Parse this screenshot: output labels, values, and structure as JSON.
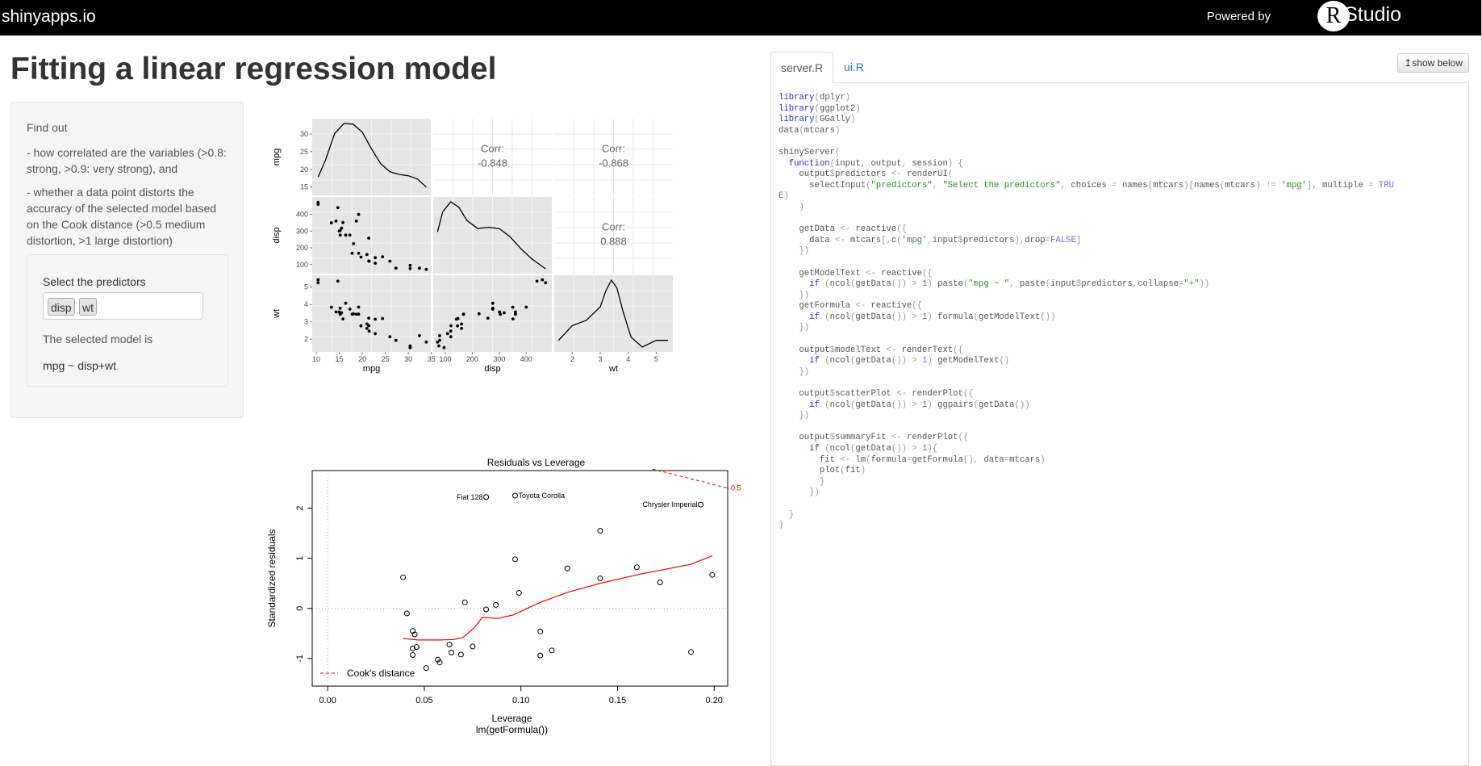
{
  "topbar": {
    "brand": "shinyapps.io",
    "powered_by": "Powered by",
    "logo_letter": "R",
    "logo_text": "Studio"
  },
  "page": {
    "title": "Fitting a linear regression model"
  },
  "sidebar": {
    "find_out": "Find out",
    "bullet1": "- how correlated are the variables (>0.8: strong, >0.9: very strong), and",
    "bullet2": "- whether a data point distorts the accuracy of the selected model based on the Cook distance (>0.5 medium distortion, >1 large distortion)",
    "select_label": "Select the predictors",
    "selected_tags": [
      "disp",
      "wt"
    ],
    "selected_model_label": "The selected model is",
    "model_formula": "mpg ~ disp+wt"
  },
  "code_panel": {
    "tabs": [
      {
        "label": "server.R",
        "active": true
      },
      {
        "label": "ui.R",
        "active": false
      }
    ],
    "show_below_label": "↥show below",
    "code": "library(dplyr)\nlibrary(ggplot2)\nlibrary(GGally)\ndata(mtcars)\n\nshinyServer(\n  function(input, output, session) {\n    output$predictors <- renderUI(\n      selectInput(\"predictors\", \"Select the predictors\", choices = names(mtcars)[names(mtcars) != 'mpg'], multiple = TRU\nE)\n    )\n\n    getData <- reactive({\n      data <- mtcars[,c('mpg',input$predictors),drop=FALSE]\n    })\n\n    getModelText <- reactive({\n      if (ncol(getData()) > 1) paste(\"mpg ~ \", paste(input$predictors,collapse=\"+\"))\n    })\n    getFormula <- reactive({\n      if (ncol(getData()) > 1) formula(getModelText())\n    })\n\n    output$modelText <- renderText({\n      if (ncol(getData()) > 1) getModelText()\n    })\n\n    output$scatterPlot <- renderPlot({\n      if (ncol(getData()) > 1) ggpairs(getData())\n    })\n\n    output$summaryFit <- renderPlot({\n      if (ncol(getData()) > 1){\n        fit <- lm(formula=getFormula(), data=mtcars)\n        plot(fit)\n        }\n      })\n\n  }\n)"
  },
  "chart_data": [
    {
      "type": "scatter",
      "title": "",
      "panel_matrix": {
        "variables": [
          "mpg",
          "disp",
          "wt"
        ],
        "correlations": [
          {
            "row": "mpg",
            "col": "disp",
            "label": "Corr:",
            "value": "-0.848"
          },
          {
            "row": "mpg",
            "col": "wt",
            "label": "Corr:",
            "value": "-0.868"
          },
          {
            "row": "disp",
            "col": "wt",
            "label": "Corr:",
            "value": "0.888"
          }
        ],
        "y_ticks": {
          "mpg": [
            15,
            20,
            25,
            30
          ],
          "disp": [
            100,
            200,
            300,
            400
          ],
          "wt": [
            2,
            3,
            4,
            5
          ]
        },
        "x_ticks": {
          "mpg": [
            10,
            15,
            20,
            25,
            30,
            35
          ],
          "disp": [
            100,
            200,
            300,
            400
          ],
          "wt": [
            2,
            3,
            4,
            5
          ]
        },
        "ranges": {
          "mpg": [
            10,
            34
          ],
          "disp": [
            70,
            480
          ],
          "wt": [
            1.5,
            5.45
          ]
        },
        "densities": {
          "mpg": {
            "x": [
              10.4,
              12,
              14,
              16,
              18,
              20,
              22,
              24,
              26,
              28,
              30,
              32,
              33.9
            ],
            "y": [
              0.2,
              0.45,
              0.85,
              1.0,
              0.99,
              0.87,
              0.62,
              0.4,
              0.28,
              0.24,
              0.22,
              0.17,
              0.05
            ]
          },
          "disp": {
            "x": [
              71,
              90,
              120,
              150,
              180,
              220,
              260,
              300,
              340,
              380,
              420,
              472
            ],
            "y": [
              0.55,
              0.85,
              1.0,
              0.92,
              0.72,
              0.6,
              0.62,
              0.6,
              0.48,
              0.3,
              0.15,
              0.0
            ]
          },
          "wt": {
            "x": [
              1.51,
              2.0,
              2.5,
              3.0,
              3.2,
              3.4,
              3.6,
              3.8,
              4.1,
              4.5,
              5.0,
              5.42
            ],
            "y": [
              0.1,
              0.32,
              0.4,
              0.6,
              0.84,
              1.0,
              0.88,
              0.55,
              0.15,
              0.0,
              0.1,
              0.1
            ]
          }
        },
        "points": {
          "mpg": [
            21,
            21,
            22.8,
            21.4,
            18.7,
            18.1,
            14.3,
            24.4,
            22.8,
            19.2,
            17.8,
            16.4,
            17.3,
            15.2,
            10.4,
            10.4,
            14.7,
            32.4,
            30.4,
            33.9,
            21.5,
            15.5,
            15.2,
            13.3,
            19.2,
            27.3,
            26,
            30.4,
            15.8,
            19.7,
            15,
            21.4
          ],
          "disp": [
            160,
            160,
            108,
            258,
            360,
            225,
            360,
            146.7,
            140.8,
            167.6,
            167.6,
            275.8,
            275.8,
            275.8,
            472,
            460,
            440,
            78.7,
            75.7,
            71.1,
            120.1,
            318,
            304,
            350,
            400,
            79,
            120.3,
            95.1,
            351,
            145,
            301,
            121
          ],
          "wt": [
            2.62,
            2.875,
            2.32,
            3.215,
            3.44,
            3.46,
            3.57,
            3.19,
            3.15,
            3.44,
            3.44,
            4.07,
            3.73,
            3.78,
            5.25,
            5.424,
            5.345,
            2.2,
            1.615,
            1.835,
            2.465,
            3.52,
            3.435,
            3.84,
            3.845,
            1.935,
            2.14,
            1.513,
            3.17,
            2.77,
            3.57,
            2.78
          ]
        }
      }
    },
    {
      "type": "scatter",
      "title": "Residuals vs Leverage",
      "xlabel": "Leverage",
      "xlabel2": "lm(getFormula())",
      "ylabel": "Standardized residuals",
      "xlim": [
        -0.008,
        0.207
      ],
      "ylim": [
        -1.55,
        2.75
      ],
      "x_ticks": [
        "0.00",
        "0.05",
        "0.10",
        "0.15",
        "0.20"
      ],
      "y_ticks": [
        "-1",
        "0",
        "1",
        "2"
      ],
      "points": [
        {
          "x": 0.082,
          "y": 2.22,
          "label": "Fiat 128"
        },
        {
          "x": 0.097,
          "y": 2.25,
          "label": "Toyota Corolla"
        },
        {
          "x": 0.193,
          "y": 2.07,
          "label": "Chrysler Imperial"
        },
        {
          "x": 0.141,
          "y": 1.55
        },
        {
          "x": 0.097,
          "y": 0.98
        },
        {
          "x": 0.124,
          "y": 0.8
        },
        {
          "x": 0.16,
          "y": 0.82
        },
        {
          "x": 0.199,
          "y": 0.67
        },
        {
          "x": 0.141,
          "y": 0.6
        },
        {
          "x": 0.172,
          "y": 0.52
        },
        {
          "x": 0.039,
          "y": 0.62
        },
        {
          "x": 0.099,
          "y": 0.31
        },
        {
          "x": 0.071,
          "y": 0.12
        },
        {
          "x": 0.087,
          "y": 0.07
        },
        {
          "x": 0.082,
          "y": -0.02
        },
        {
          "x": 0.041,
          "y": -0.1
        },
        {
          "x": 0.044,
          "y": -0.45
        },
        {
          "x": 0.045,
          "y": -0.52
        },
        {
          "x": 0.11,
          "y": -0.46
        },
        {
          "x": 0.063,
          "y": -0.72
        },
        {
          "x": 0.075,
          "y": -0.76
        },
        {
          "x": 0.044,
          "y": -0.8
        },
        {
          "x": 0.046,
          "y": -0.77
        },
        {
          "x": 0.064,
          "y": -0.88
        },
        {
          "x": 0.069,
          "y": -0.92
        },
        {
          "x": 0.116,
          "y": -0.84
        },
        {
          "x": 0.11,
          "y": -0.94
        },
        {
          "x": 0.188,
          "y": -0.87
        },
        {
          "x": 0.044,
          "y": -0.93
        },
        {
          "x": 0.057,
          "y": -1.02
        },
        {
          "x": 0.058,
          "y": -1.08
        },
        {
          "x": 0.051,
          "y": -1.19
        }
      ],
      "smooth_line": {
        "x": [
          0.039,
          0.047,
          0.058,
          0.065,
          0.07,
          0.076,
          0.08,
          0.088,
          0.096,
          0.11,
          0.124,
          0.141,
          0.16,
          0.188,
          0.199
        ],
        "y": [
          -0.6,
          -0.63,
          -0.63,
          -0.62,
          -0.58,
          -0.38,
          -0.18,
          -0.2,
          -0.13,
          0.12,
          0.32,
          0.5,
          0.67,
          0.88,
          1.05
        ]
      },
      "cooks_distance": {
        "label": "0.5",
        "x": [
          0.168,
          0.207
        ],
        "y": [
          2.78,
          2.4
        ]
      },
      "legend": "Cook's distance",
      "legend_position": "bottom-left"
    }
  ]
}
